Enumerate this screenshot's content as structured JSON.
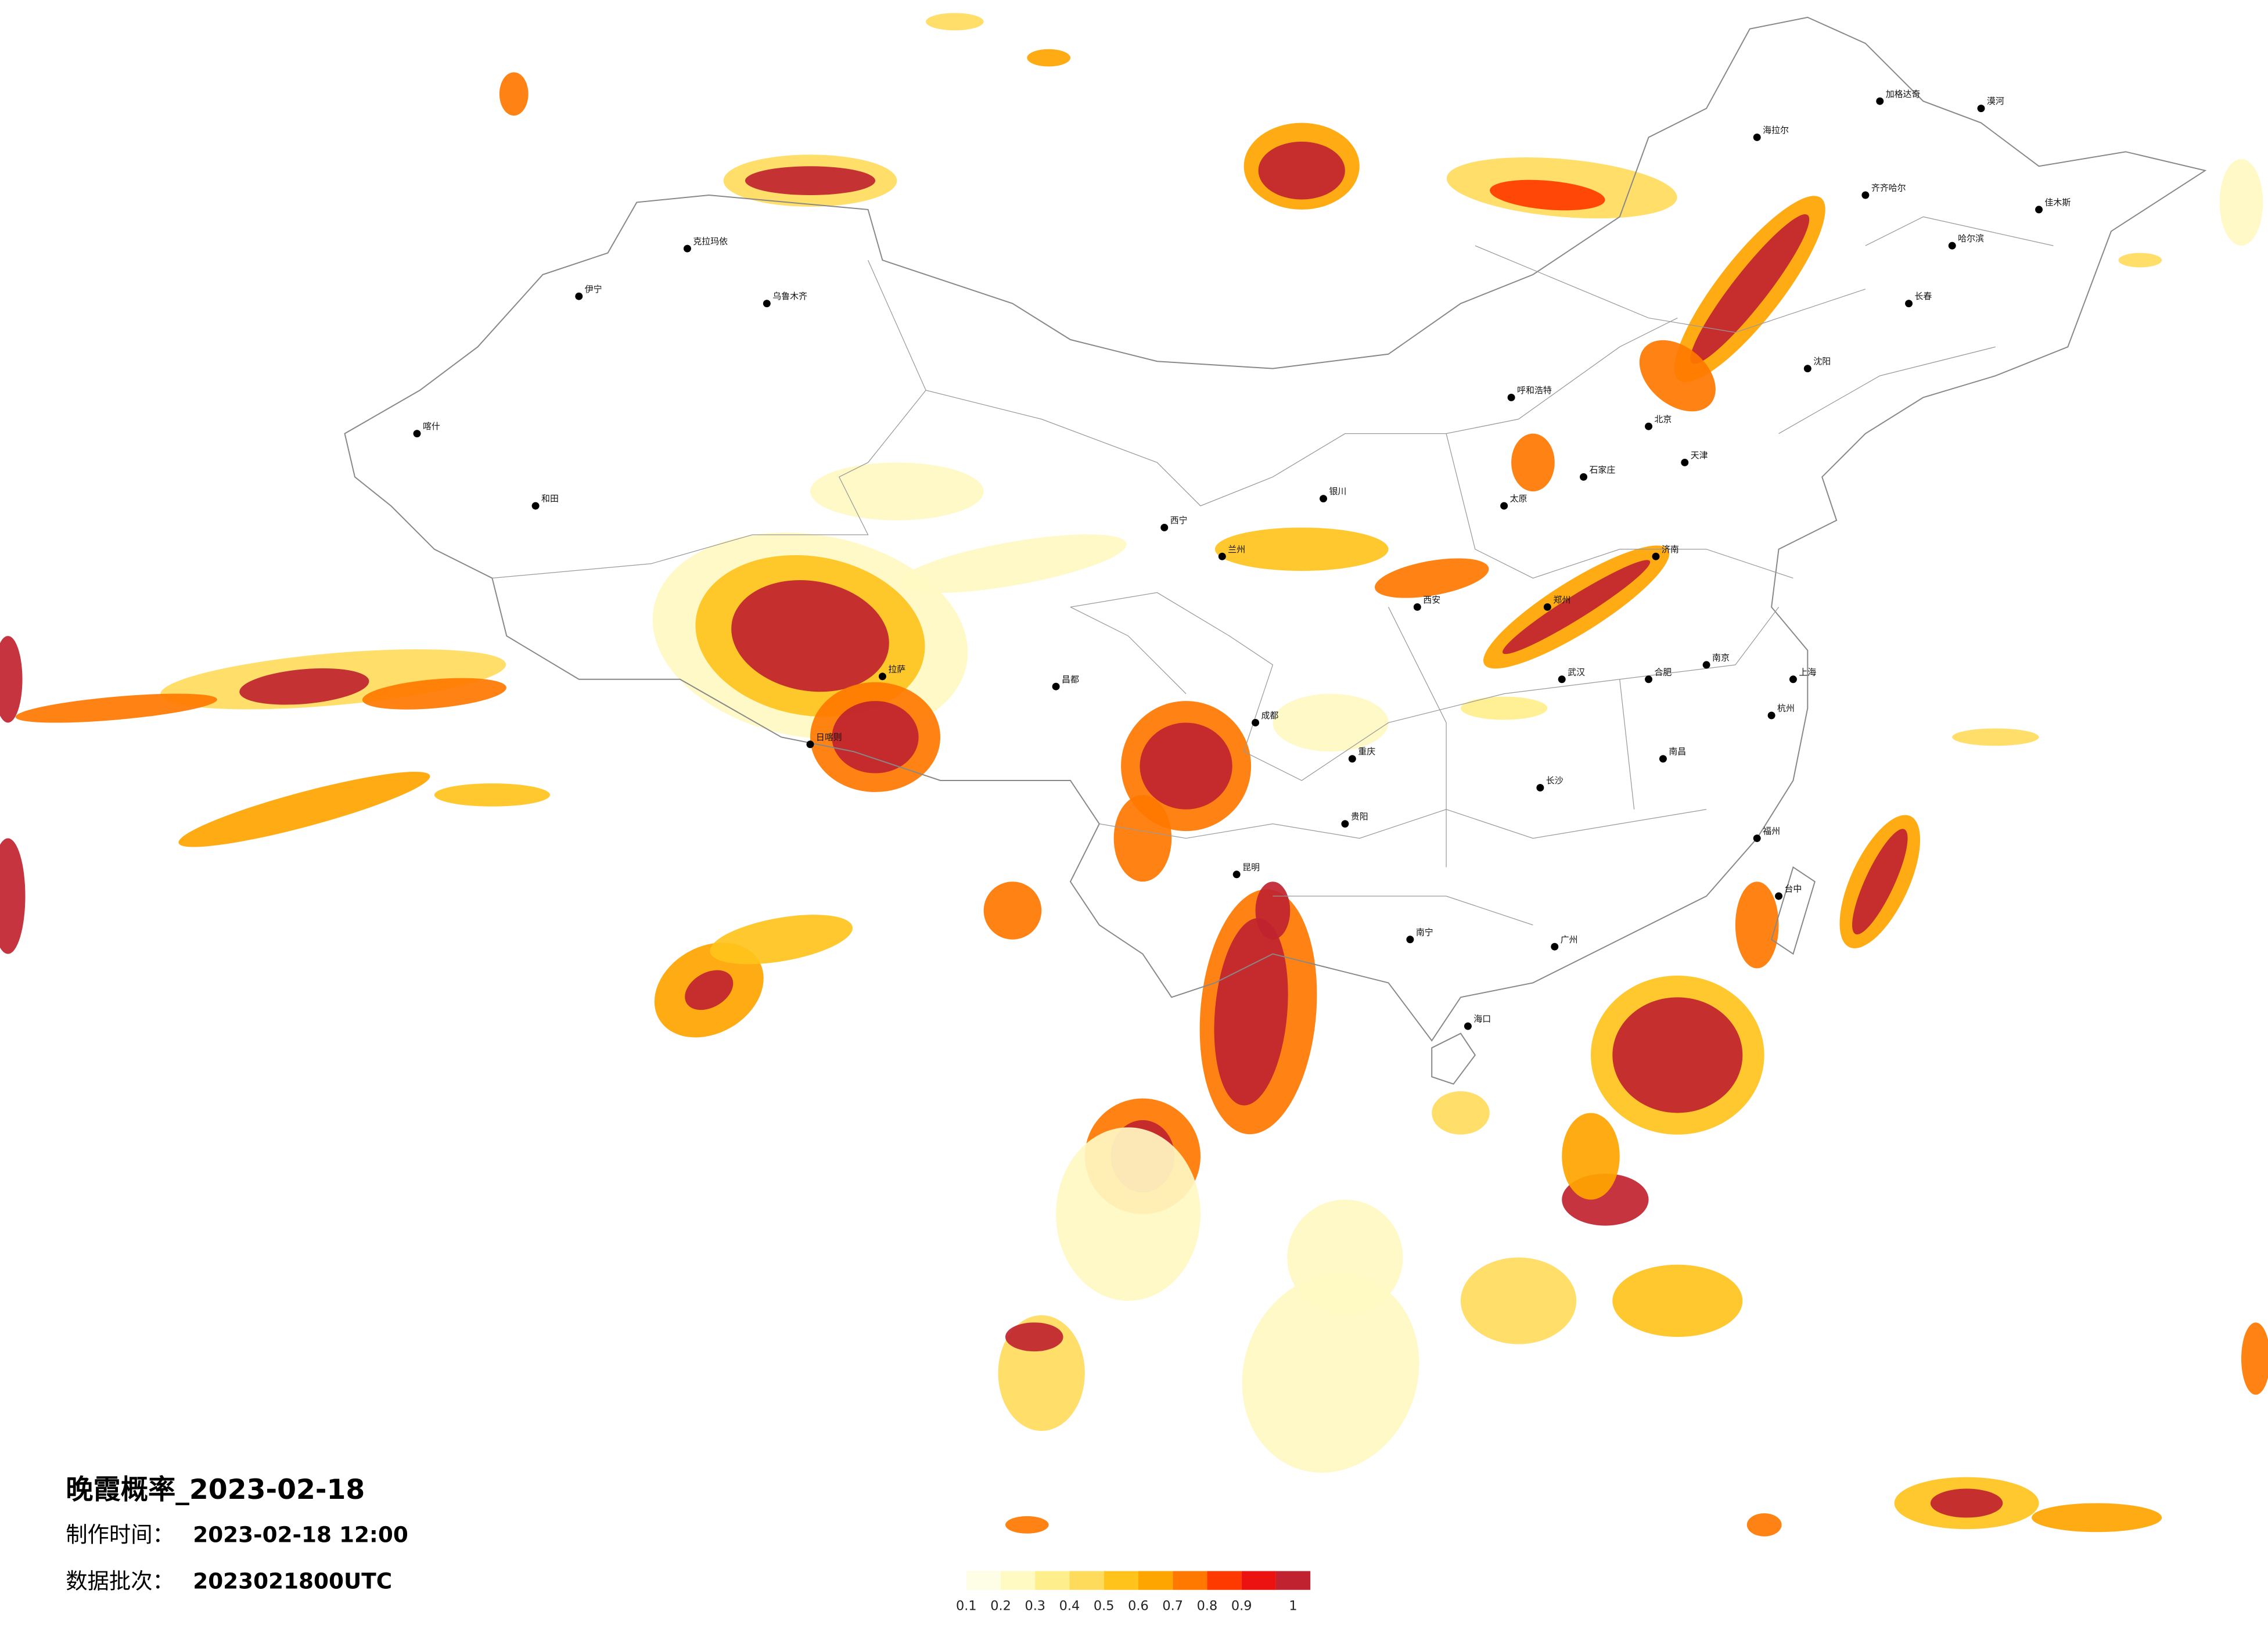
{
  "title": "晚霞概率_2023-02-18",
  "info": [
    {
      "label": "制作时间：",
      "value": "2023-02-18 12:00"
    },
    {
      "label": "数据批次：",
      "value": "2023021800UTC"
    }
  ],
  "legend": {
    "colors": [
      "#fefde6",
      "#fff9c2",
      "#ffef8c",
      "#ffdb5c",
      "#ffc31c",
      "#ffa500",
      "#ff7800",
      "#ff3a00",
      "#ec1212",
      "#c0232f"
    ],
    "ticks": [
      0.1,
      0.2,
      0.3,
      0.4,
      0.5,
      0.6,
      0.7,
      0.8,
      0.9,
      1
    ]
  },
  "cities": [
    "漠河",
    "加格达奇",
    "海拉尔",
    "齐齐哈尔",
    "哈尔滨",
    "佳木斯",
    "长春",
    "沈阳",
    "北京",
    "天津",
    "石家庄",
    "太原",
    "呼和浩特",
    "银川",
    "兰州",
    "西宁",
    "乌鲁木齐",
    "克拉玛依",
    "伊宁",
    "喀什",
    "和田",
    "拉萨",
    "日喀则",
    "昌都",
    "成都",
    "重庆",
    "贵阳",
    "昆明",
    "南宁",
    "广州",
    "海口",
    "长沙",
    "武汉",
    "郑州",
    "济南",
    "南京",
    "上海",
    "杭州",
    "福州",
    "南昌",
    "合肥",
    "西安",
    "台中"
  ]
}
